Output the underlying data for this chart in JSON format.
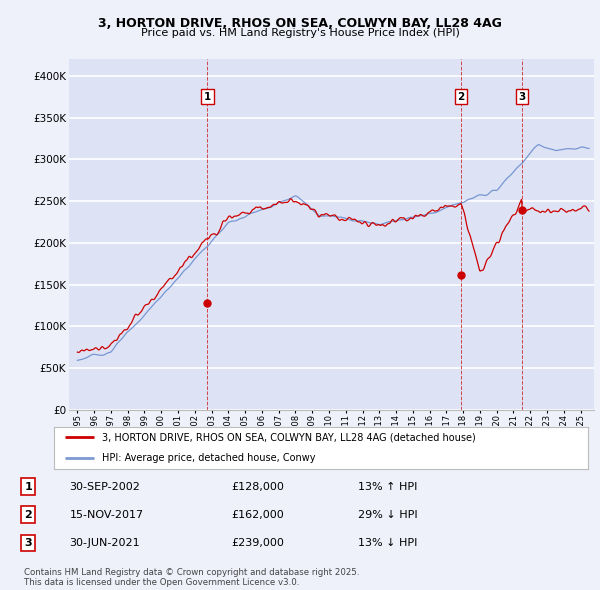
{
  "title_line1": "3, HORTON DRIVE, RHOS ON SEA, COLWYN BAY, LL28 4AG",
  "title_line2": "Price paid vs. HM Land Registry's House Price Index (HPI)",
  "background_color": "#eef0fa",
  "plot_bg_color": "#dde3f5",
  "grid_color": "#ffffff",
  "red_line_color": "#cc0000",
  "blue_line_color": "#6688cc",
  "ylim": [
    0,
    420000
  ],
  "yticks": [
    0,
    50000,
    100000,
    150000,
    200000,
    250000,
    300000,
    350000,
    400000
  ],
  "ytick_labels": [
    "£0",
    "£50K",
    "£100K",
    "£150K",
    "£200K",
    "£250K",
    "£300K",
    "£350K",
    "£400K"
  ],
  "sale_dates": [
    2002.75,
    2017.875,
    2021.5
  ],
  "sale_prices": [
    128000,
    162000,
    239000
  ],
  "sale_labels": [
    "1",
    "2",
    "3"
  ],
  "legend_red": "3, HORTON DRIVE, RHOS ON SEA, COLWYN BAY, LL28 4AG (detached house)",
  "legend_blue": "HPI: Average price, detached house, Conwy",
  "table_rows": [
    [
      "1",
      "30-SEP-2002",
      "£128,000",
      "13% ↑ HPI"
    ],
    [
      "2",
      "15-NOV-2017",
      "£162,000",
      "29% ↓ HPI"
    ],
    [
      "3",
      "30-JUN-2021",
      "£239,000",
      "13% ↓ HPI"
    ]
  ],
  "footer": "Contains HM Land Registry data © Crown copyright and database right 2025.\nThis data is licensed under the Open Government Licence v3.0.",
  "xmin": 1994.5,
  "xmax": 2025.8
}
